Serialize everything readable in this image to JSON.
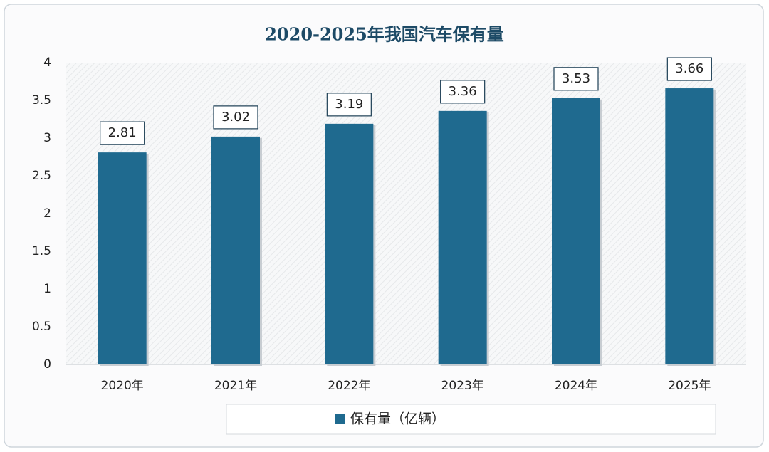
{
  "chart_data": {
    "type": "bar",
    "title": "2020-2025年我国汽车保有量",
    "categories": [
      "2020年",
      "2021年",
      "2022年",
      "2023年",
      "2024年",
      "2025年"
    ],
    "series": [
      {
        "name": "保有量（亿辆）",
        "color": "#1f6a8f",
        "values": [
          2.81,
          3.02,
          3.19,
          3.36,
          3.53,
          3.66
        ]
      }
    ],
    "ylim": [
      0,
      4
    ],
    "yticks": [
      0,
      0.5,
      1,
      1.5,
      2,
      2.5,
      3,
      3.5,
      4
    ],
    "grid": false,
    "legend": "bottom"
  }
}
